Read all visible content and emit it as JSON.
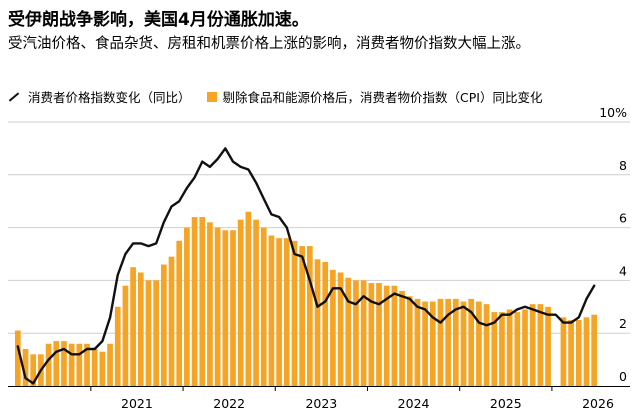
{
  "title": "受伊朗战争影响，美国4月份通胀加速。",
  "subtitle": "受汽油价格、食品杂货、房租和机票价格上涨的影响，消费者物价指数大幅上涨。",
  "legend": {
    "line_label": "消费者价格指数变化（同比）",
    "bar_label": "剔除食品和能源价格后，消费者物价指数（CPI）同比变化"
  },
  "colors": {
    "bar": "#f5a425",
    "line": "#111111",
    "grid": "#cfcfcf"
  },
  "chart_data": {
    "type": "bar",
    "x_start": "2020-03",
    "x_end": "2026-04",
    "ylim": [
      0,
      10
    ],
    "y_ticks": [
      "0",
      "2",
      "4",
      "6",
      "8",
      "10%"
    ],
    "y_tick_values": [
      0,
      2,
      4,
      6,
      8,
      10
    ],
    "x_ticks": [
      "2021",
      "2022",
      "2023",
      "2024",
      "2025",
      "2026"
    ],
    "series": [
      {
        "type": "bar",
        "values": [
          2.1,
          1.4,
          1.2,
          1.2,
          1.6,
          1.7,
          1.7,
          1.6,
          1.6,
          1.6,
          1.4,
          1.3,
          1.6,
          3.0,
          3.8,
          4.5,
          4.3,
          4.0,
          4.0,
          4.6,
          4.9,
          5.5,
          6.0,
          6.4,
          6.4,
          6.2,
          6.0,
          5.9,
          5.9,
          6.3,
          6.6,
          6.3,
          6.0,
          5.7,
          5.6,
          5.6,
          5.5,
          5.3,
          5.3,
          4.8,
          4.7,
          4.4,
          4.3,
          4.1,
          4.0,
          4.0,
          3.9,
          3.9,
          3.8,
          3.8,
          3.6,
          3.4,
          3.3,
          3.2,
          3.2,
          3.3,
          3.3,
          3.3,
          3.2,
          3.3,
          3.2,
          3.1,
          2.8,
          2.8,
          2.9,
          2.8,
          2.9,
          3.1,
          3.1,
          3.0,
          null,
          2.6,
          2.5,
          2.5,
          2.6,
          2.7
        ]
      },
      {
        "type": "line",
        "values": [
          1.5,
          0.3,
          0.1,
          0.6,
          1.0,
          1.3,
          1.4,
          1.2,
          1.2,
          1.4,
          1.4,
          1.7,
          2.6,
          4.2,
          5.0,
          5.4,
          5.4,
          5.3,
          5.4,
          6.2,
          6.8,
          7.0,
          7.5,
          7.9,
          8.5,
          8.3,
          8.6,
          9.0,
          8.5,
          8.3,
          8.2,
          7.7,
          7.1,
          6.5,
          6.4,
          6.0,
          5.0,
          4.9,
          4.0,
          3.0,
          3.2,
          3.7,
          3.7,
          3.2,
          3.1,
          3.4,
          3.2,
          3.1,
          3.3,
          3.5,
          3.4,
          3.3,
          3.0,
          2.9,
          2.6,
          2.4,
          2.7,
          2.9,
          3.0,
          2.8,
          2.4,
          2.3,
          2.4,
          2.7,
          2.7,
          2.9,
          3.0,
          2.9,
          2.8,
          2.7,
          2.7,
          2.4,
          2.4,
          2.6,
          3.3,
          3.8
        ]
      }
    ]
  }
}
